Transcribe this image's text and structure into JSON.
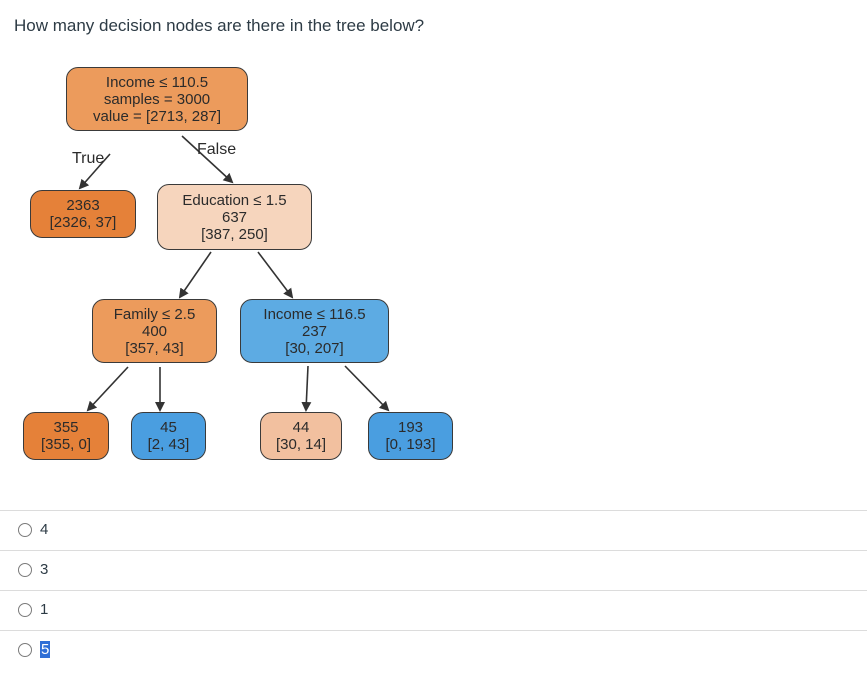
{
  "question": "How many decision nodes are there in the tree below?",
  "tree": {
    "colors": {
      "orange_strong": "#e58139",
      "orange_medium": "#ec9b5c",
      "orange_light": "#f6d5bd",
      "orange_pale": "#f2c09f",
      "blue_strong": "#4a9ee0",
      "blue_medium": "#5dabe3",
      "edge": "#333333"
    },
    "nodes": [
      {
        "id": "root",
        "lines": [
          "Income ≤ 110.5",
          "samples = 3000",
          "value = [2713, 287]"
        ]
      },
      {
        "id": "n1",
        "lines": [
          "2363",
          "[2326, 37]"
        ]
      },
      {
        "id": "n2",
        "lines": [
          "Education ≤ 1.5",
          "637",
          "[387, 250]"
        ]
      },
      {
        "id": "n3",
        "lines": [
          "Family ≤ 2.5",
          "400",
          "[357, 43]"
        ]
      },
      {
        "id": "n4",
        "lines": [
          "Income ≤ 116.5",
          "237",
          "[30, 207]"
        ]
      },
      {
        "id": "n5",
        "lines": [
          "355",
          "[355, 0]"
        ]
      },
      {
        "id": "n6",
        "lines": [
          "45",
          "[2, 43]"
        ]
      },
      {
        "id": "n7",
        "lines": [
          "44",
          "[30, 14]"
        ]
      },
      {
        "id": "n8",
        "lines": [
          "193",
          "[0, 193]"
        ]
      }
    ],
    "edge_labels": {
      "true_label": "True",
      "false_label": "False"
    }
  },
  "answers": [
    {
      "label": "4",
      "selected": false,
      "highlighted": false
    },
    {
      "label": "3",
      "selected": false,
      "highlighted": false
    },
    {
      "label": "1",
      "selected": false,
      "highlighted": false
    },
    {
      "label": "5",
      "selected": false,
      "highlighted": true
    }
  ]
}
